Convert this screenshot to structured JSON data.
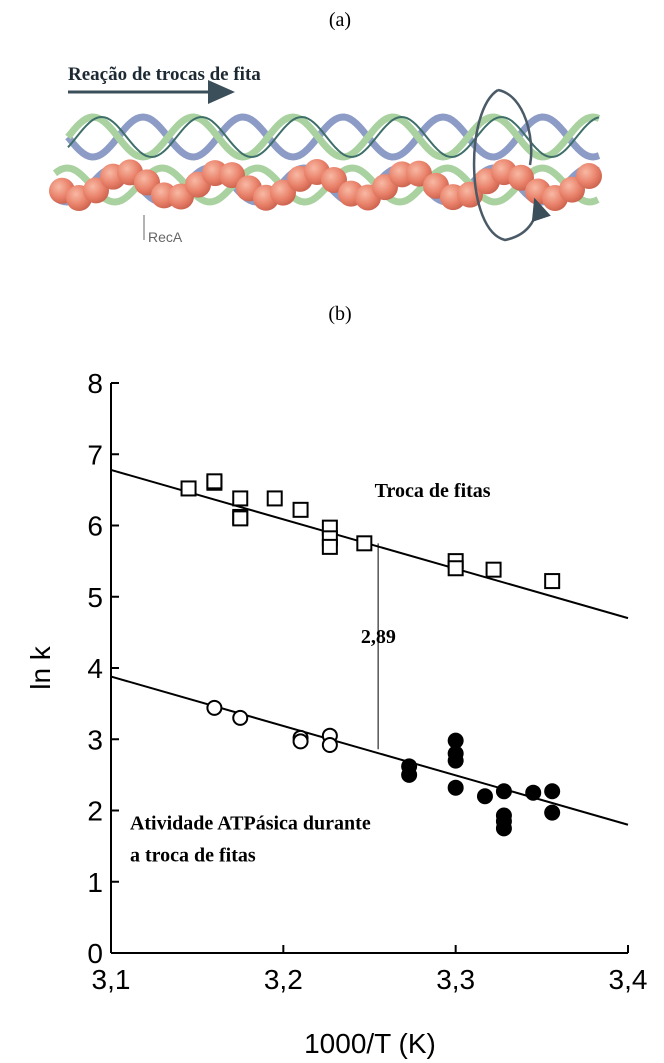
{
  "panel_a": {
    "label": "(a)",
    "arrow_label": "Reação de trocas de fita",
    "protein_label": "RecA"
  },
  "chart_data": {
    "type": "scatter",
    "panel_label": "(b)",
    "x_label": "1000/T (K)",
    "y_label": "ln k",
    "xlim": [
      3.1,
      3.4
    ],
    "ylim": [
      0,
      8
    ],
    "xticks": [
      {
        "value": 3.1,
        "label": "3,1"
      },
      {
        "value": 3.2,
        "label": "3,2"
      },
      {
        "value": 3.3,
        "label": "3,3"
      },
      {
        "value": 3.4,
        "label": "3,4"
      }
    ],
    "yticks": [
      0,
      1,
      2,
      3,
      4,
      5,
      6,
      7,
      8
    ],
    "series": [
      {
        "marker": "square",
        "filled": false,
        "color": "#000000",
        "x": [
          3.145,
          3.16,
          3.16,
          3.175,
          3.175,
          3.175,
          3.195,
          3.21,
          3.227,
          3.227,
          3.227,
          3.247,
          3.3,
          3.3,
          3.322,
          3.356
        ],
        "values": [
          6.52,
          6.6,
          6.62,
          6.38,
          6.12,
          6.1,
          6.38,
          6.22,
          5.97,
          5.82,
          5.7,
          5.75,
          5.5,
          5.4,
          5.38,
          5.22
        ]
      },
      {
        "marker": "circle",
        "filled": false,
        "color": "#000000",
        "x": [
          3.16,
          3.175,
          3.21,
          3.21,
          3.227,
          3.227
        ],
        "values": [
          3.44,
          3.3,
          3.02,
          2.97,
          3.05,
          2.92
        ]
      },
      {
        "marker": "circle",
        "filled": true,
        "color": "#000000",
        "x": [
          3.273,
          3.273,
          3.3,
          3.3,
          3.3,
          3.3,
          3.317,
          3.328,
          3.328,
          3.328,
          3.328,
          3.345,
          3.356,
          3.356
        ],
        "values": [
          2.62,
          2.5,
          2.98,
          2.8,
          2.7,
          2.32,
          2.2,
          2.27,
          1.93,
          1.85,
          1.75,
          2.25,
          2.27,
          1.97
        ]
      }
    ],
    "fit_lines": [
      {
        "x": [
          3.1,
          3.4
        ],
        "values": [
          6.78,
          4.7
        ]
      },
      {
        "x": [
          3.1,
          3.4
        ],
        "values": [
          3.88,
          1.8
        ]
      }
    ],
    "gap_line": {
      "x": [
        3.255,
        3.255
      ],
      "values": [
        5.75,
        2.86
      ]
    },
    "annotations": [
      {
        "text": "Troca de fitas",
        "x": 3.253,
        "y": 6.4
      },
      {
        "text": "2,89",
        "x": 3.245,
        "y": 4.35
      },
      {
        "lines": [
          "Atividade ATPásica durante",
          "a troca de fitas"
        ],
        "x": 3.111,
        "y": 1.73
      }
    ]
  }
}
